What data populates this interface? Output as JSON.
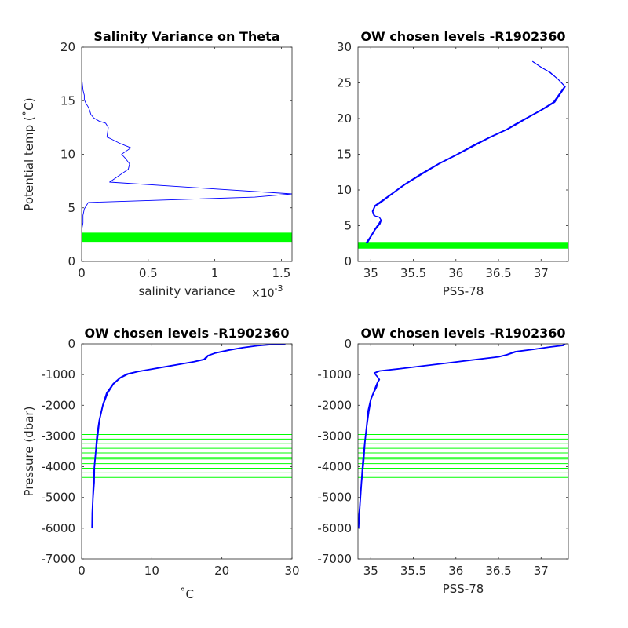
{
  "chart_data": [
    {
      "id": "p1",
      "type": "line",
      "title": "Salinity Variance on Theta",
      "xlabel": "salinity variance",
      "x_exponent": "×10",
      "x_exponent_power": "-3",
      "ylabel": "Potential temp (˚C)",
      "xlim": [
        0,
        0.00158
      ],
      "ylim": [
        0,
        20
      ],
      "xticks": [
        0,
        0.0005,
        0.001,
        0.0015
      ],
      "xticklabels": [
        "0",
        "0.5",
        "1",
        "1.5"
      ],
      "yticks": [
        0,
        5,
        10,
        15,
        20
      ],
      "yticklabels": [
        "0",
        "5",
        "10",
        "15",
        "20"
      ],
      "series": [
        {
          "color": "#0000ff",
          "x": [
            0.0,
            0.0,
            1e-05,
            2e-05,
            2e-05,
            3e-05,
            5e-05,
            6e-05,
            7e-05,
            9e-05,
            0.00013,
            0.00018,
            0.0002,
            0.00019,
            0.00021,
            0.00029,
            0.00037,
            0.0003,
            0.00033,
            0.00036,
            0.00035,
            0.00021,
            0.00083,
            0.00158,
            0.0013,
            5e-05,
            2e-05,
            1e-05,
            1e-05,
            0.0,
            0.0
          ],
          "y": [
            18.5,
            17.2,
            16.0,
            15.5,
            15.1,
            14.8,
            14.4,
            14.1,
            13.7,
            13.4,
            13.1,
            12.9,
            12.5,
            11.6,
            11.5,
            11.0,
            10.6,
            10.0,
            9.6,
            9.1,
            8.6,
            7.4,
            6.9,
            6.3,
            6.0,
            5.5,
            4.9,
            4.3,
            3.6,
            2.9,
            2.4
          ]
        }
      ],
      "bands": [
        {
          "color": "#00ff00",
          "y": [
            1.9,
            2.0,
            2.1,
            2.2,
            2.3,
            2.4,
            2.5,
            2.6
          ]
        }
      ]
    },
    {
      "id": "p2",
      "type": "line",
      "title": "OW chosen levels -R1902360",
      "xlabel": "PSS-78",
      "ylabel": "",
      "xlim": [
        34.85,
        37.32
      ],
      "ylim": [
        0,
        30
      ],
      "xticks": [
        35,
        35.5,
        36,
        36.5,
        37
      ],
      "xticklabels": [
        "35",
        "35.5",
        "36",
        "36.5",
        "37"
      ],
      "yticks": [
        0,
        5,
        10,
        15,
        20,
        25,
        30
      ],
      "yticklabels": [
        "0",
        "5",
        "10",
        "15",
        "20",
        "25",
        "30"
      ],
      "series": [
        {
          "color": "#0000ff",
          "x": [
            34.95,
            35.0,
            35.05,
            35.1,
            35.12,
            35.1,
            35.04,
            35.02,
            35.05,
            35.1,
            35.25,
            35.4,
            35.6,
            35.8,
            36.0,
            36.2,
            36.4,
            36.6,
            36.7,
            36.85,
            37.0,
            37.15,
            37.28,
            37.2,
            37.1,
            37.0,
            36.9
          ],
          "y": [
            2.6,
            3.5,
            4.5,
            5.3,
            5.8,
            6.2,
            6.4,
            7.0,
            7.8,
            8.2,
            9.5,
            10.8,
            12.3,
            13.7,
            14.9,
            16.2,
            17.4,
            18.5,
            19.2,
            20.2,
            21.2,
            22.3,
            24.5,
            25.5,
            26.5,
            27.2,
            28.0
          ]
        }
      ],
      "bands": [
        {
          "color": "#00ff00",
          "y": [
            1.9,
            2.0,
            2.1,
            2.2,
            2.3,
            2.4,
            2.5,
            2.6
          ]
        }
      ]
    },
    {
      "id": "p3",
      "type": "line",
      "title": "OW chosen levels -R1902360",
      "xlabel": "˚C",
      "ylabel": "Pressure (dbar)",
      "xlim": [
        0,
        30
      ],
      "ylim": [
        -7000,
        0
      ],
      "xticks": [
        0,
        10,
        20,
        30
      ],
      "xticklabels": [
        "0",
        "10",
        "20",
        "30"
      ],
      "yticks": [
        -7000,
        -6000,
        -5000,
        -4000,
        -3000,
        -2000,
        -1000,
        0
      ],
      "yticklabels": [
        "-7000",
        "-6000",
        "-5000",
        "-4000",
        "-3000",
        "-2000",
        "-1000",
        "0"
      ],
      "series": [
        {
          "color": "#0000ff",
          "x": [
            1.5,
            1.5,
            1.6,
            1.7,
            1.8,
            2.0,
            2.2,
            2.5,
            3.0,
            3.6,
            4.5,
            5.5,
            6.5,
            8.0,
            10.0,
            12.0,
            14.0,
            16.0,
            17.5,
            18.0,
            19.0,
            21.0,
            23.0,
            25.0,
            27.0,
            29.0
          ],
          "y": [
            -6000,
            -5500,
            -5000,
            -4500,
            -4000,
            -3500,
            -3000,
            -2500,
            -2000,
            -1600,
            -1300,
            -1100,
            -980,
            -900,
            -820,
            -740,
            -660,
            -580,
            -500,
            -380,
            -300,
            -200,
            -120,
            -60,
            -20,
            0
          ]
        }
      ],
      "hlines": {
        "color": "#00ff00",
        "y": [
          -2950,
          -3100,
          -3250,
          -3400,
          -3550,
          -3700,
          -3750,
          -3900,
          -4050,
          -4200,
          -4350
        ]
      }
    },
    {
      "id": "p4",
      "type": "line",
      "title": "OW chosen levels -R1902360",
      "xlabel": "PSS-78",
      "ylabel": "",
      "xlim": [
        34.85,
        37.32
      ],
      "ylim": [
        -7000,
        0
      ],
      "xticks": [
        35,
        35.5,
        36,
        36.5,
        37
      ],
      "xticklabels": [
        "35",
        "35.5",
        "36",
        "36.5",
        "37"
      ],
      "yticks": [
        -7000,
        -6000,
        -5000,
        -4000,
        -3000,
        -2000,
        -1000,
        0
      ],
      "yticklabels": [
        "-7000",
        "-6000",
        "-5000",
        "-4000",
        "-3000",
        "-2000",
        "-1000",
        "0"
      ],
      "series": [
        {
          "color": "#0000ff",
          "x": [
            34.85,
            34.87,
            34.89,
            34.91,
            34.93,
            34.95,
            34.97,
            35.0,
            35.03,
            35.06,
            35.08,
            35.1,
            35.07,
            35.04,
            35.1,
            35.3,
            35.6,
            35.9,
            36.2,
            36.5,
            36.6,
            36.7,
            36.9,
            37.1,
            37.25,
            37.28
          ],
          "y": [
            -6000,
            -5300,
            -4500,
            -3800,
            -3200,
            -2700,
            -2200,
            -1800,
            -1600,
            -1400,
            -1250,
            -1150,
            -1050,
            -950,
            -880,
            -820,
            -720,
            -620,
            -520,
            -420,
            -350,
            -250,
            -180,
            -100,
            -50,
            0
          ]
        }
      ],
      "hlines": {
        "color": "#00ff00",
        "y": [
          -2950,
          -3100,
          -3250,
          -3400,
          -3550,
          -3700,
          -3750,
          -3900,
          -4050,
          -4200,
          -4350
        ]
      }
    }
  ]
}
